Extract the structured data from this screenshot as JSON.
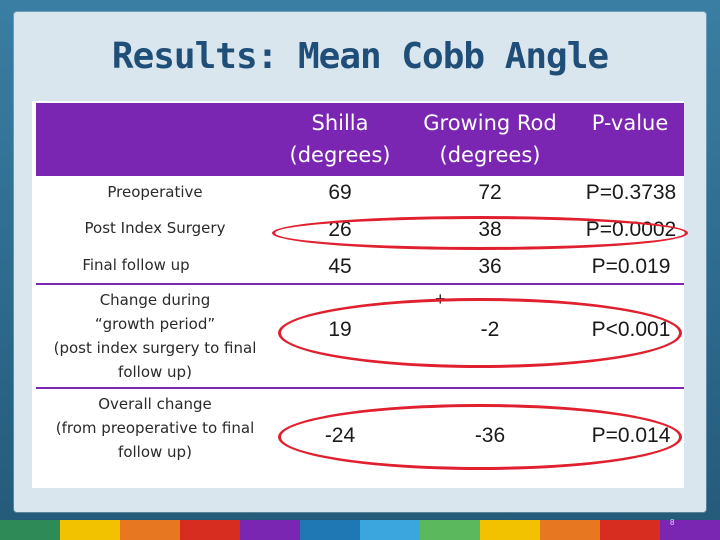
{
  "slide": {
    "title": "Results: Mean Cobb Angle",
    "page_number": "8"
  },
  "table": {
    "headers": {
      "shilla_line1": "Shilla",
      "shilla_line2": "(degrees)",
      "growing_line1": "Growing Rod",
      "growing_line2": "(degrees)",
      "pvalue": "P-value"
    },
    "rows": [
      {
        "label_lines": [
          "Preoperative"
        ],
        "shilla": "69",
        "growing": "72",
        "pvalue": "P=0.3738"
      },
      {
        "label_lines": [
          "Post Index Surgery"
        ],
        "shilla": "26",
        "growing": "38",
        "pvalue": "P=0.0002"
      },
      {
        "label_lines": [
          "Final follow up"
        ],
        "shilla": "45",
        "growing": "36",
        "pvalue": "P=0.019"
      },
      {
        "label_lines": [
          "Change during",
          "“growth period”",
          "(post index surgery to final",
          "follow up)"
        ],
        "shilla": "19",
        "growing": "-2",
        "pvalue": "P<0.001"
      },
      {
        "label_lines": [
          "Overall change",
          "(from preoperative to final",
          "follow up)"
        ],
        "shilla": "-24",
        "growing": "-36",
        "pvalue": "P=0.014"
      }
    ],
    "annotation_plus": "+"
  },
  "colors": {
    "header_purple": "#7b25b3",
    "ellipse_red": "#e0202e",
    "title_blue": "#1f4e79"
  },
  "bottom_bar_colors": [
    "#2e8b57",
    "#f2c200",
    "#e87722",
    "#d62d20",
    "#7b25b3",
    "#1f77b4",
    "#3aa6dd",
    "#5cb85c",
    "#f2c200",
    "#e87722",
    "#d62d20",
    "#7b25b3"
  ]
}
